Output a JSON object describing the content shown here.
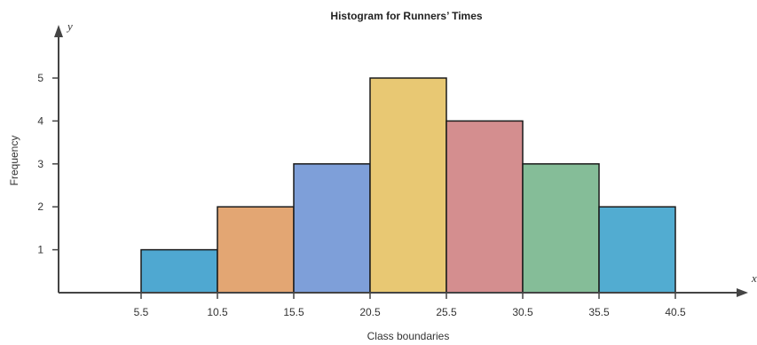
{
  "chart_data": {
    "type": "bar",
    "title": "Histogram for Runners’ Times",
    "xlabel": "Class boundaries",
    "ylabel": "Frequency",
    "x_axis_letter": "x",
    "y_axis_letter": "y",
    "boundaries": [
      "5.5",
      "10.5",
      "15.5",
      "20.5",
      "25.5",
      "30.5",
      "35.5",
      "40.5"
    ],
    "bins": [
      {
        "from": 5.5,
        "to": 10.5,
        "value": 1,
        "color": "#4fa8d1"
      },
      {
        "from": 10.5,
        "to": 15.5,
        "value": 2,
        "color": "#e3a673"
      },
      {
        "from": 15.5,
        "to": 20.5,
        "value": 3,
        "color": "#7e9fd9"
      },
      {
        "from": 20.5,
        "to": 25.5,
        "value": 5,
        "color": "#e8c873"
      },
      {
        "from": 25.5,
        "to": 30.5,
        "value": 4,
        "color": "#d48e8f"
      },
      {
        "from": 30.5,
        "to": 35.5,
        "value": 3,
        "color": "#85bd98"
      },
      {
        "from": 35.5,
        "to": 40.5,
        "value": 2,
        "color": "#52acd1"
      }
    ],
    "yticks": [
      "1",
      "2",
      "3",
      "4",
      "5"
    ],
    "ylim": [
      0,
      5
    ],
    "xlim": [
      0.5,
      45.5
    ],
    "grid": false
  }
}
